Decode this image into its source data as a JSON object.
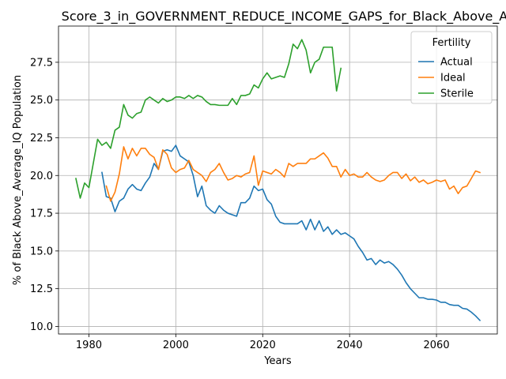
{
  "chart_data": {
    "type": "line",
    "title": "Score_3_in_GOVERNMENT_REDUCE_INCOME_GAPS_for_Black_Above_Average_IQ",
    "xlabel": "Years",
    "ylabel": "% of Black Above_Average_IQ Population",
    "xlim": [
      1973,
      2074
    ],
    "ylim": [
      9.5,
      29.9
    ],
    "xticks": [
      1980,
      2000,
      2020,
      2040,
      2060
    ],
    "yticks": [
      10.0,
      12.5,
      15.0,
      17.5,
      20.0,
      22.5,
      25.0,
      27.5
    ],
    "xtick_labels": [
      "1980",
      "2000",
      "2020",
      "2040",
      "2060"
    ],
    "ytick_labels": [
      "10.0",
      "12.5",
      "15.0",
      "17.5",
      "20.0",
      "22.5",
      "25.0",
      "27.5"
    ],
    "grid": true,
    "legend": {
      "title": "Fertility",
      "placement": "top-right",
      "entries": [
        "Actual",
        "Ideal",
        "Sterile"
      ]
    },
    "series": [
      {
        "name": "Actual",
        "color": "#1f77b4",
        "x": [
          1983,
          1984,
          1985,
          1986,
          1987,
          1988,
          1989,
          1990,
          1991,
          1992,
          1993,
          1994,
          1995,
          1996,
          1997,
          1998,
          1999,
          2000,
          2001,
          2002,
          2003,
          2004,
          2005,
          2006,
          2007,
          2008,
          2009,
          2010,
          2011,
          2012,
          2013,
          2014,
          2015,
          2016,
          2017,
          2018,
          2019,
          2020,
          2021,
          2022,
          2023,
          2024,
          2025,
          2026,
          2027,
          2028,
          2029,
          2030,
          2031,
          2032,
          2033,
          2034,
          2035,
          2036,
          2037,
          2038,
          2039,
          2040,
          2041,
          2042,
          2043,
          2044,
          2045,
          2046,
          2047,
          2048,
          2049,
          2050,
          2051,
          2052,
          2053,
          2054,
          2055,
          2056,
          2057,
          2058,
          2059,
          2060,
          2061,
          2062,
          2063,
          2064,
          2065,
          2066,
          2067,
          2068,
          2069,
          2070
        ],
        "y": [
          20.2,
          18.6,
          18.5,
          17.6,
          18.3,
          18.5,
          19.1,
          19.4,
          19.1,
          19.0,
          19.5,
          19.9,
          20.8,
          20.4,
          21.6,
          21.7,
          21.6,
          22.0,
          21.3,
          21.1,
          20.9,
          20.0,
          18.6,
          19.3,
          18.0,
          17.7,
          17.5,
          18.0,
          17.7,
          17.5,
          17.4,
          17.3,
          18.2,
          18.2,
          18.5,
          19.3,
          19.0,
          19.1,
          18.4,
          18.1,
          17.3,
          16.9,
          16.8,
          16.8,
          16.8,
          16.8,
          17.0,
          16.4,
          17.1,
          16.4,
          17.0,
          16.3,
          16.6,
          16.1,
          16.4,
          16.1,
          16.2,
          16.0,
          15.8,
          15.3,
          14.9,
          14.4,
          14.5,
          14.1,
          14.4,
          14.2,
          14.3,
          14.1,
          13.8,
          13.4,
          12.9,
          12.5,
          12.2,
          11.9,
          11.9,
          11.8,
          11.8,
          11.75,
          11.6,
          11.6,
          11.45,
          11.4,
          11.4,
          11.2,
          11.15,
          10.95,
          10.7,
          10.4
        ]
      },
      {
        "name": "Ideal",
        "color": "#ff7f0e",
        "x": [
          1984,
          1985,
          1986,
          1987,
          1988,
          1989,
          1990,
          1991,
          1992,
          1993,
          1994,
          1995,
          1996,
          1997,
          1998,
          1999,
          2000,
          2001,
          2002,
          2003,
          2004,
          2005,
          2006,
          2007,
          2008,
          2009,
          2010,
          2011,
          2012,
          2013,
          2014,
          2015,
          2016,
          2017,
          2018,
          2019,
          2020,
          2021,
          2022,
          2023,
          2024,
          2025,
          2026,
          2027,
          2028,
          2029,
          2030,
          2031,
          2032,
          2033,
          2034,
          2035,
          2036,
          2037,
          2038,
          2039,
          2040,
          2041,
          2042,
          2043,
          2044,
          2045,
          2046,
          2047,
          2048,
          2049,
          2050,
          2051,
          2052,
          2053,
          2054,
          2055,
          2056,
          2057,
          2058,
          2059,
          2060,
          2061,
          2062,
          2063,
          2064,
          2065,
          2066,
          2067,
          2068,
          2069,
          2070
        ],
        "y": [
          19.3,
          18.3,
          18.9,
          20.1,
          21.9,
          21.1,
          21.8,
          21.3,
          21.8,
          21.8,
          21.4,
          21.2,
          20.4,
          21.7,
          21.4,
          20.5,
          20.2,
          20.4,
          20.5,
          21.0,
          20.4,
          20.2,
          20.0,
          19.6,
          20.2,
          20.4,
          20.8,
          20.2,
          19.7,
          19.8,
          20.0,
          19.9,
          20.1,
          20.2,
          21.3,
          19.35,
          20.3,
          20.2,
          20.1,
          20.4,
          20.2,
          19.9,
          20.8,
          20.6,
          20.8,
          20.8,
          20.8,
          21.1,
          21.1,
          21.3,
          21.5,
          21.15,
          20.6,
          20.6,
          19.9,
          20.4,
          20.0,
          20.1,
          19.9,
          19.9,
          20.2,
          19.9,
          19.7,
          19.6,
          19.7,
          20.0,
          20.2,
          20.2,
          19.8,
          20.1,
          19.65,
          19.9,
          19.55,
          19.7,
          19.45,
          19.55,
          19.7,
          19.6,
          19.7,
          19.1,
          19.3,
          18.8,
          19.2,
          19.3,
          19.8,
          20.3,
          20.2
        ]
      },
      {
        "name": "Sterile",
        "color": "#2ca02c",
        "x": [
          1977,
          1978,
          1979,
          1980,
          1981,
          1982,
          1983,
          1984,
          1985,
          1986,
          1987,
          1988,
          1989,
          1990,
          1991,
          1992,
          1993,
          1994,
          1995,
          1996,
          1997,
          1998,
          1999,
          2000,
          2001,
          2002,
          2003,
          2004,
          2005,
          2006,
          2007,
          2008,
          2009,
          2010,
          2011,
          2012,
          2013,
          2014,
          2015,
          2016,
          2017,
          2018,
          2019,
          2020,
          2021,
          2022,
          2023,
          2024,
          2025,
          2026,
          2027,
          2028,
          2029,
          2030,
          2031,
          2032,
          2033,
          2034,
          2035,
          2036,
          2037,
          2038
        ],
        "y": [
          19.8,
          18.5,
          19.5,
          19.2,
          20.8,
          22.4,
          22.0,
          22.2,
          21.8,
          23.0,
          23.2,
          24.7,
          24.0,
          23.8,
          24.1,
          24.2,
          25.0,
          25.2,
          25.0,
          24.8,
          25.1,
          24.9,
          25.0,
          25.2,
          25.2,
          25.1,
          25.3,
          25.1,
          25.3,
          25.2,
          24.9,
          24.7,
          24.7,
          24.65,
          24.65,
          24.65,
          25.1,
          24.7,
          25.3,
          25.3,
          25.4,
          26.0,
          25.8,
          26.4,
          26.8,
          26.4,
          26.5,
          26.6,
          26.5,
          27.4,
          28.7,
          28.4,
          29.0,
          28.3,
          26.8,
          27.5,
          27.7,
          28.5,
          28.5,
          28.5,
          25.6,
          27.1
        ]
      }
    ]
  }
}
